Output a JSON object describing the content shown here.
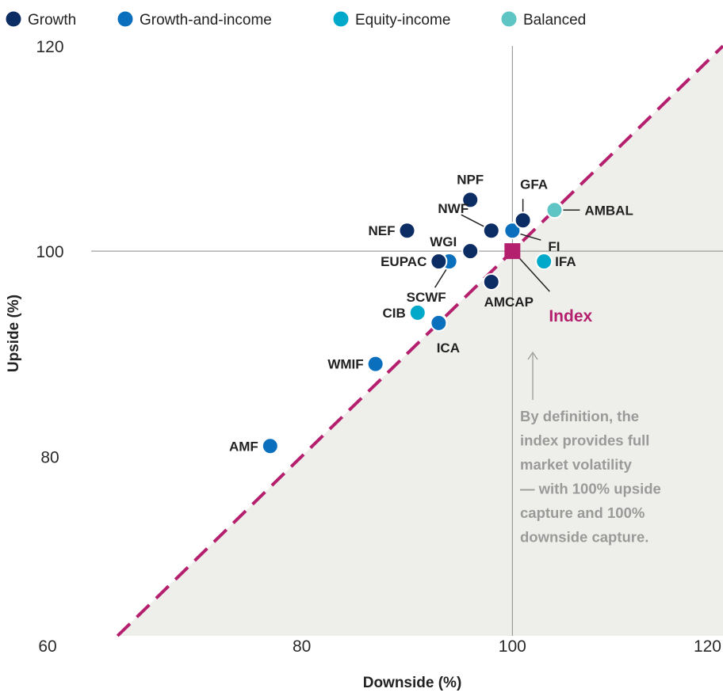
{
  "chart_data": {
    "type": "scatter",
    "xlabel": "Downside (%)",
    "ylabel": "Upside (%)",
    "xlim": [
      60,
      120
    ],
    "ylim": [
      62.5,
      120
    ],
    "x_ticks": [
      60,
      80,
      100,
      120
    ],
    "y_ticks": [
      80,
      100,
      120
    ],
    "legend": [
      {
        "name": "Growth",
        "color": "#0b2d63"
      },
      {
        "name": "Growth-and-income",
        "color": "#0a6fbd"
      },
      {
        "name": "Equity-income",
        "color": "#00a9c9"
      },
      {
        "name": "Balanced",
        "color": "#5ec4c4"
      }
    ],
    "legend_position": "top",
    "points": [
      {
        "label": "NPF",
        "category": "Growth",
        "x": 96,
        "y": 105
      },
      {
        "label": "GFA",
        "category": "Growth",
        "x": 101,
        "y": 103
      },
      {
        "label": "AMBAL",
        "category": "Balanced",
        "x": 104,
        "y": 104
      },
      {
        "label": "NWF",
        "category": "Growth",
        "x": 98,
        "y": 102
      },
      {
        "label": "FI",
        "category": "Growth-and-income",
        "x": 100,
        "y": 102
      },
      {
        "label": "NEF",
        "category": "Growth",
        "x": 90,
        "y": 102
      },
      {
        "label": "WGI",
        "category": "Growth",
        "x": 96,
        "y": 100
      },
      {
        "label": "EUPAC",
        "category": "Growth",
        "x": 93,
        "y": 99
      },
      {
        "label": "SCWF",
        "category": "Growth-and-income",
        "x": 94,
        "y": 99
      },
      {
        "label": "IFA",
        "category": "Equity-income",
        "x": 103,
        "y": 99
      },
      {
        "label": "AMCAP",
        "category": "Growth",
        "x": 98,
        "y": 97
      },
      {
        "label": "CIB",
        "category": "Equity-income",
        "x": 91,
        "y": 94
      },
      {
        "label": "ICA",
        "category": "Growth-and-income",
        "x": 93,
        "y": 93
      },
      {
        "label": "WMIF",
        "category": "Growth-and-income",
        "x": 87,
        "y": 89
      },
      {
        "label": "AMF",
        "category": "Growth-and-income",
        "x": 77,
        "y": 81
      }
    ],
    "index_point": {
      "label": "Index",
      "x": 100,
      "y": 100,
      "color": "#b5206e"
    },
    "annotation": "By definition, the index provides full market volatility — with 100% upside capture and 100% downside capture.",
    "reference_line": {
      "type": "diagonal",
      "style": "dashed",
      "color": "#b5206e"
    },
    "shaded_region": "below-diagonal",
    "shade_color": "#eeeeea",
    "grid": false
  }
}
